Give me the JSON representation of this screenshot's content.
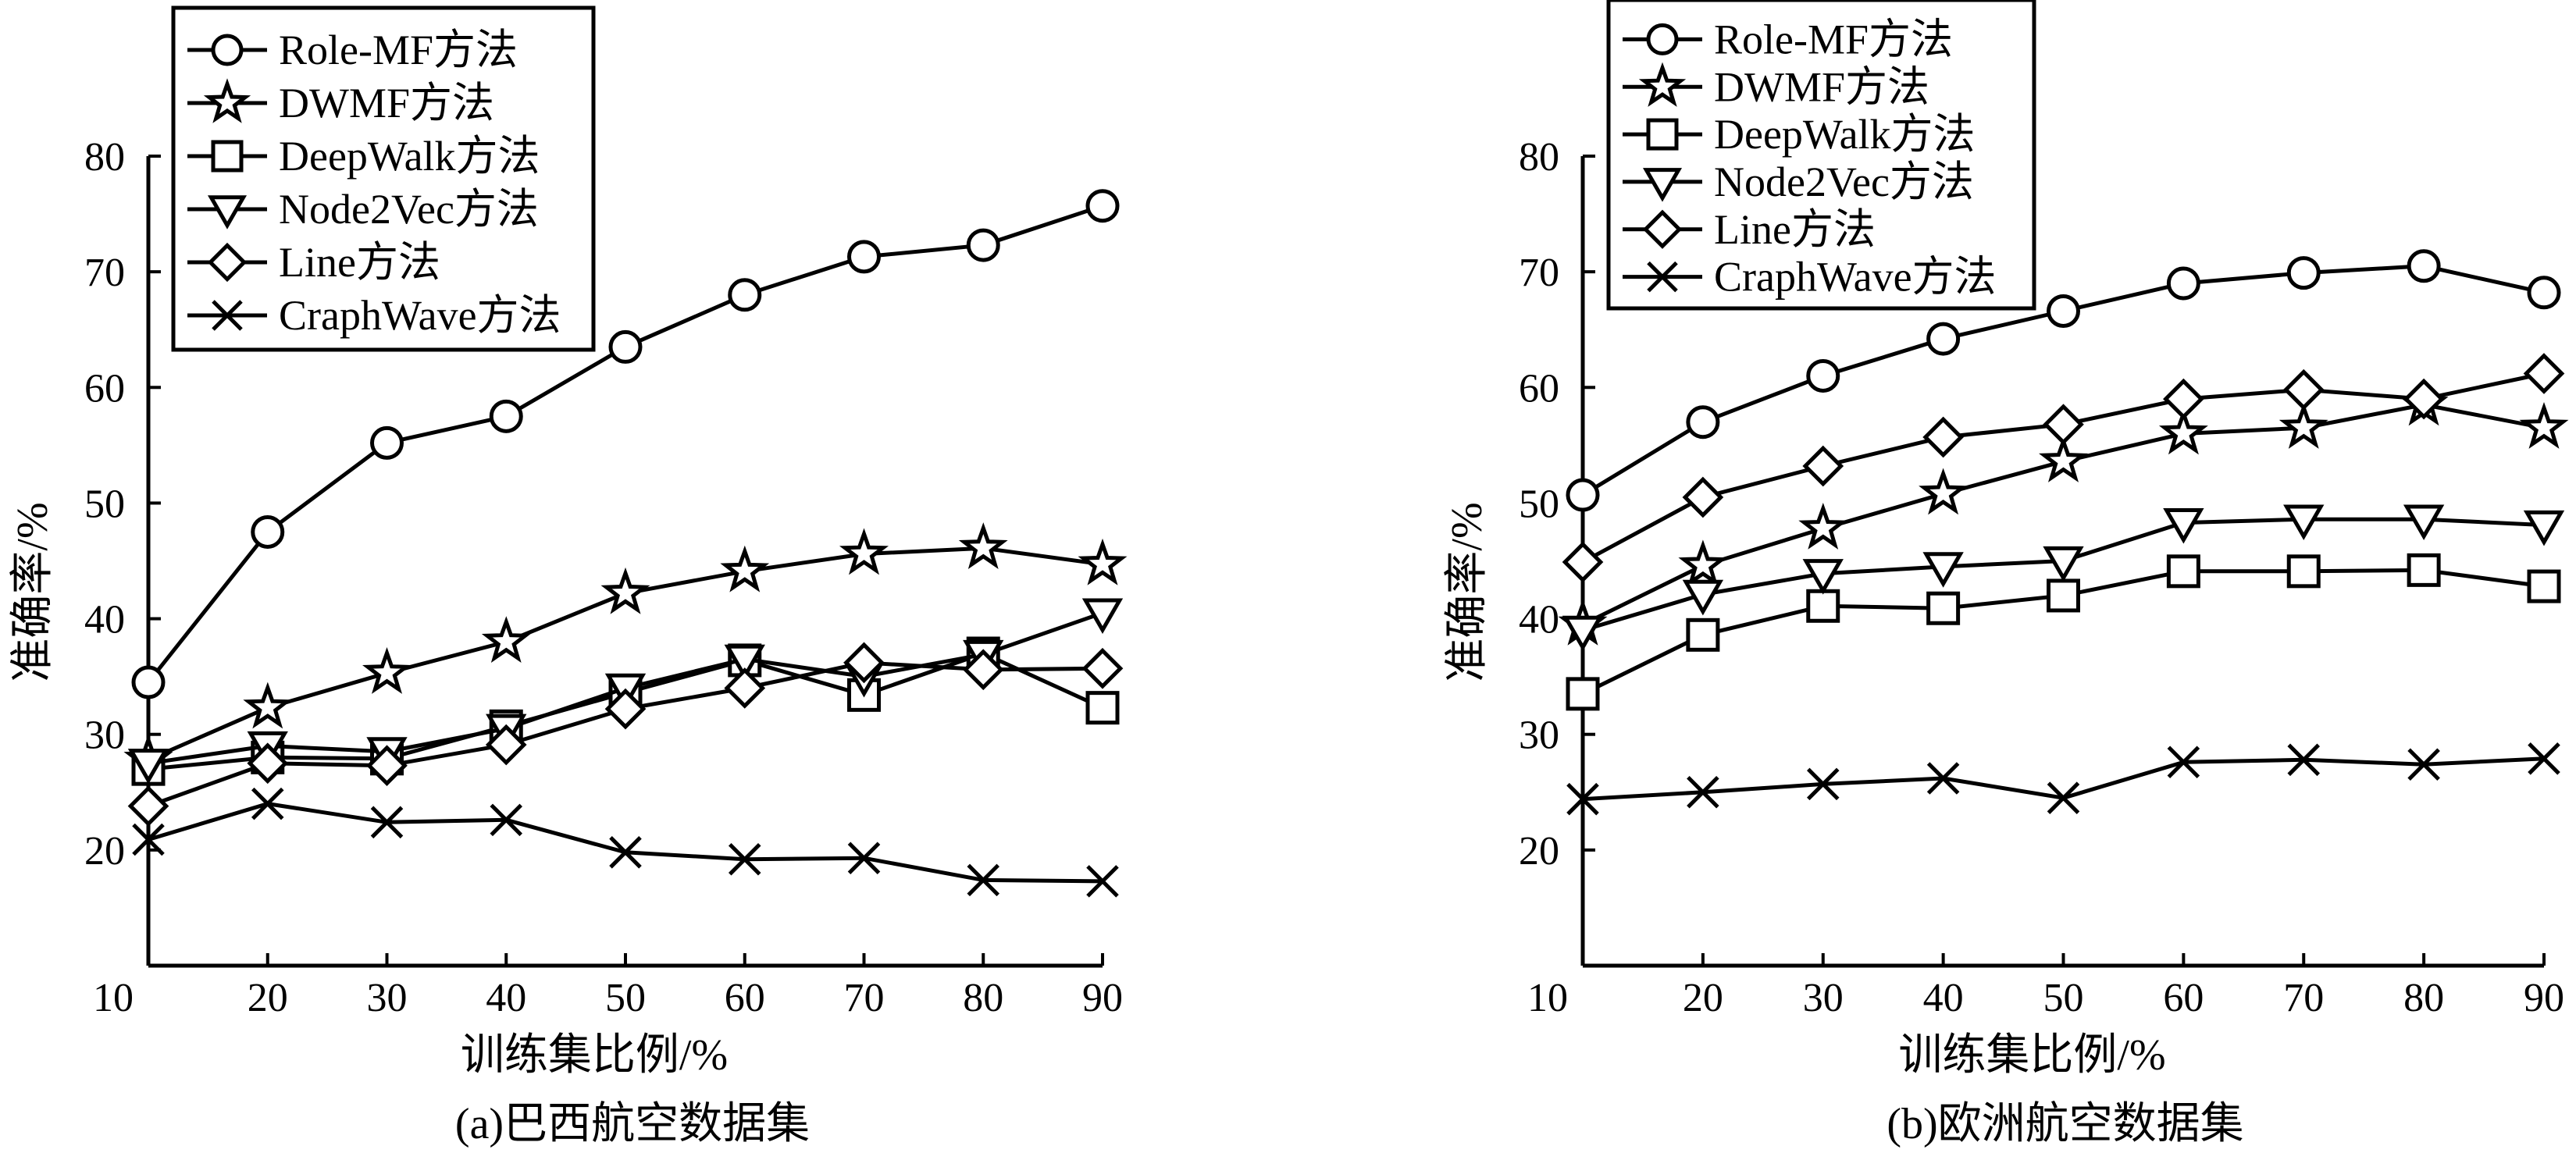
{
  "chart_data": [
    {
      "type": "line",
      "caption": "(a)巴西航空数据集",
      "xlabel": "训练集比例/%",
      "ylabel": "准确率/%",
      "xlim": [
        10,
        90
      ],
      "ylim": [
        10,
        80
      ],
      "x_ticks": [
        "10",
        "20",
        "30",
        "40",
        "50",
        "60",
        "70",
        "80",
        "90"
      ],
      "y_ticks": [
        "20",
        "30",
        "40",
        "50",
        "60",
        "70",
        "80"
      ],
      "x": [
        10,
        20,
        30,
        40,
        50,
        60,
        70,
        80,
        90
      ],
      "grid": false,
      "legend_position": "top-left",
      "series": [
        {
          "name": "Role-MF方法",
          "marker": "circle",
          "values": [
            34.5,
            47.5,
            55.2,
            57.5,
            63.5,
            68.0,
            71.3,
            72.3,
            75.7
          ]
        },
        {
          "name": "DWMF方法",
          "marker": "star",
          "values": [
            27.8,
            32.3,
            35.3,
            38.0,
            42.2,
            44.1,
            45.6,
            46.1,
            44.7
          ]
        },
        {
          "name": "DeepWalk方法",
          "marker": "square",
          "values": [
            27.0,
            28.0,
            27.9,
            30.7,
            33.6,
            36.4,
            33.4,
            37.0,
            32.3
          ]
        },
        {
          "name": "Node2Vec方法",
          "marker": "triangle-down",
          "values": [
            27.5,
            29.0,
            28.5,
            30.5,
            34.0,
            36.5,
            35.0,
            36.9,
            40.5
          ]
        },
        {
          "name": "Line方法",
          "marker": "diamond",
          "values": [
            23.8,
            27.5,
            27.3,
            29.1,
            32.2,
            34.0,
            36.2,
            35.6,
            35.7
          ]
        },
        {
          "name": "CraphWave方法",
          "marker": "x",
          "values": [
            20.9,
            24.0,
            22.4,
            22.6,
            19.8,
            19.2,
            19.3,
            17.4,
            17.3
          ]
        }
      ]
    },
    {
      "type": "line",
      "caption": "(b)欧洲航空数据集",
      "xlabel": "训练集比例/%",
      "ylabel": "准确率/%",
      "xlim": [
        10,
        90
      ],
      "ylim": [
        10,
        80
      ],
      "x_ticks": [
        "10",
        "20",
        "30",
        "40",
        "50",
        "60",
        "70",
        "80",
        "90"
      ],
      "y_ticks": [
        "20",
        "30",
        "40",
        "50",
        "60",
        "70",
        "80"
      ],
      "x": [
        10,
        20,
        30,
        40,
        50,
        60,
        70,
        80,
        90
      ],
      "grid": false,
      "legend_position": "top-left",
      "series": [
        {
          "name": "Role-MF方法",
          "marker": "circle",
          "values": [
            50.7,
            57.0,
            61.0,
            64.2,
            66.6,
            69.0,
            69.9,
            70.5,
            68.2
          ]
        },
        {
          "name": "DWMF方法",
          "marker": "star",
          "values": [
            39.5,
            44.6,
            47.8,
            50.8,
            53.6,
            56.0,
            56.5,
            58.5,
            56.5
          ]
        },
        {
          "name": "DeepWalk方法",
          "marker": "square",
          "values": [
            33.5,
            38.6,
            41.1,
            40.9,
            42.0,
            44.1,
            44.1,
            44.2,
            42.8
          ]
        },
        {
          "name": "Node2Vec方法",
          "marker": "triangle-down",
          "values": [
            39.0,
            42.1,
            43.9,
            44.5,
            45.0,
            48.3,
            48.6,
            48.6,
            48.1
          ]
        },
        {
          "name": "Line方法",
          "marker": "diamond",
          "values": [
            44.9,
            50.5,
            53.2,
            55.7,
            56.8,
            59.0,
            59.8,
            59.0,
            61.2
          ]
        },
        {
          "name": "CraphWave方法",
          "marker": "x",
          "values": [
            24.4,
            25.0,
            25.7,
            26.2,
            24.5,
            27.6,
            27.8,
            27.4,
            27.9
          ]
        }
      ]
    }
  ]
}
